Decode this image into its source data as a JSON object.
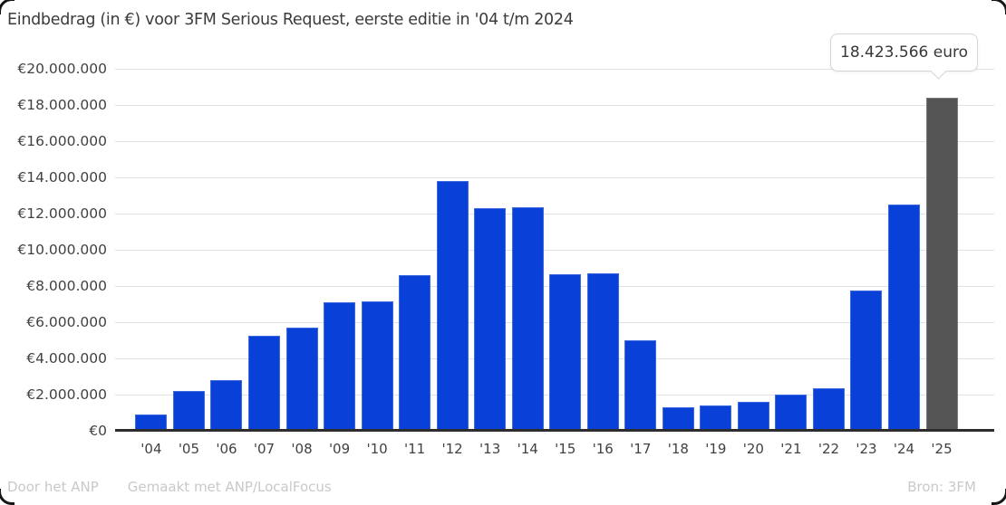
{
  "title": "Eindbedrag (in €) voor 3FM Serious Request, eerste editie in '04 t/m 2024",
  "tooltip": {
    "text": "18.423.566 euro"
  },
  "footer": {
    "credit1": "Door het ANP",
    "credit2": "Gemaakt met ANP/LocalFocus",
    "source": "Bron: 3FM"
  },
  "colors": {
    "bar": "#0840d8",
    "highlight_bar": "#555555",
    "grid": "#e2e2e2",
    "baseline": "#2d2d2d",
    "axis_text": "#414141",
    "footer_text": "#c9c9c9",
    "tooltip_border": "#d5d5d5"
  },
  "chart_data": {
    "type": "bar",
    "title": "Eindbedrag (in €) voor 3FM Serious Request, eerste editie in '04 t/m 2024",
    "xlabel": "",
    "ylabel": "",
    "categories": [
      "'04",
      "'05",
      "'06",
      "'07",
      "'08",
      "'09",
      "'10",
      "'11",
      "'12",
      "'13",
      "'14",
      "'15",
      "'16",
      "'17",
      "'18",
      "'19",
      "'20",
      "'21",
      "'22",
      "'23",
      "'24",
      "'25"
    ],
    "values": [
      920000,
      2200000,
      2800000,
      5250000,
      5700000,
      7100000,
      7150000,
      8600000,
      13800000,
      12300000,
      12350000,
      8650000,
      8700000,
      5000000,
      1300000,
      1400000,
      1600000,
      2000000,
      2350000,
      7750000,
      12500000,
      18423566
    ],
    "ylim": [
      0,
      20000000
    ],
    "ytick_step": 2000000,
    "ytick_labels": [
      "€20.000.000",
      "€18.000.000",
      "€16.000.000",
      "€14.000.000",
      "€12.000.000",
      "€10.000.000",
      "€8.000.000",
      "€6.000.000",
      "€4.000.000",
      "€2.000.000",
      "€0"
    ],
    "grid": true,
    "legend": false,
    "highlight_index": 21,
    "annotation": {
      "text": "18.423.566 euro",
      "target_category": "'25"
    }
  }
}
